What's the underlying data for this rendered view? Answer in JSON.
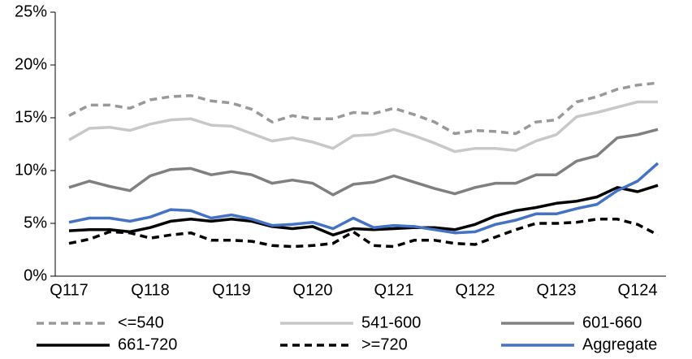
{
  "chart_data": {
    "type": "line",
    "categories": [
      "Q117",
      null,
      null,
      null,
      "Q118",
      null,
      null,
      null,
      "Q119",
      null,
      null,
      null,
      "Q120",
      null,
      null,
      null,
      "Q121",
      null,
      null,
      null,
      "Q122",
      null,
      null,
      null,
      "Q123",
      null,
      null,
      null,
      "Q124",
      null
    ],
    "series": [
      {
        "name": "<=540",
        "color": "#999999",
        "dashed": true,
        "values": [
          15.2,
          16.2,
          16.2,
          15.9,
          16.7,
          17.0,
          17.1,
          16.6,
          16.4,
          15.8,
          14.6,
          15.2,
          14.9,
          14.9,
          15.5,
          15.4,
          15.9,
          15.3,
          14.6,
          13.5,
          13.8,
          13.7,
          13.5,
          14.6,
          14.8,
          16.5,
          17.0,
          17.7,
          18.1,
          18.3
        ]
      },
      {
        "name": "541-600",
        "color": "#c8c8c8",
        "dashed": false,
        "values": [
          12.9,
          14.0,
          14.1,
          13.8,
          14.4,
          14.8,
          14.9,
          14.3,
          14.2,
          13.5,
          12.8,
          13.1,
          12.7,
          12.1,
          13.3,
          13.4,
          13.9,
          13.3,
          12.6,
          11.8,
          12.1,
          12.1,
          11.9,
          12.8,
          13.4,
          15.1,
          15.5,
          16.0,
          16.5,
          16.5
        ]
      },
      {
        "name": "601-660",
        "color": "#808080",
        "dashed": false,
        "values": [
          8.4,
          9.0,
          8.5,
          8.1,
          9.5,
          10.1,
          10.2,
          9.6,
          9.9,
          9.6,
          8.8,
          9.1,
          8.8,
          7.7,
          8.7,
          8.9,
          9.5,
          8.9,
          8.3,
          7.8,
          8.4,
          8.8,
          8.8,
          9.6,
          9.6,
          10.9,
          11.4,
          13.1,
          13.4,
          13.9
        ]
      },
      {
        "name": "661-720",
        "color": "#000000",
        "dashed": false,
        "values": [
          4.3,
          4.4,
          4.4,
          4.2,
          4.6,
          5.2,
          5.4,
          5.2,
          5.4,
          5.2,
          4.7,
          4.5,
          4.7,
          3.9,
          4.5,
          4.4,
          4.5,
          4.6,
          4.6,
          4.4,
          4.9,
          5.7,
          6.2,
          6.5,
          6.9,
          7.1,
          7.5,
          8.4,
          8.0,
          8.6
        ]
      },
      {
        "name": ">=720",
        "color": "#000000",
        "dashed": true,
        "values": [
          3.1,
          3.5,
          4.2,
          4.1,
          3.6,
          3.9,
          4.1,
          3.4,
          3.4,
          3.3,
          2.9,
          2.8,
          2.9,
          3.1,
          4.2,
          2.9,
          2.8,
          3.4,
          3.4,
          3.1,
          3.0,
          3.7,
          4.4,
          5.0,
          5.0,
          5.1,
          5.4,
          5.4,
          4.9,
          3.9
        ]
      },
      {
        "name": "Aggregate",
        "color": "#4472c4",
        "dashed": false,
        "values": [
          5.1,
          5.5,
          5.5,
          5.2,
          5.6,
          6.3,
          6.2,
          5.5,
          5.8,
          5.4,
          4.8,
          4.9,
          5.1,
          4.5,
          5.5,
          4.6,
          4.8,
          4.7,
          4.4,
          4.1,
          4.2,
          4.9,
          5.3,
          5.9,
          5.9,
          6.4,
          6.8,
          8.1,
          9.0,
          10.7
        ]
      }
    ],
    "ylim": [
      0,
      25
    ],
    "yticks": [
      {
        "value": 0,
        "label": "0%"
      },
      {
        "value": 5,
        "label": "5%"
      },
      {
        "value": 10,
        "label": "10%"
      },
      {
        "value": 15,
        "label": "15%"
      },
      {
        "value": 20,
        "label": "20%"
      },
      {
        "value": 25,
        "label": "25%"
      }
    ],
    "grid": false,
    "legend": "bottom"
  }
}
